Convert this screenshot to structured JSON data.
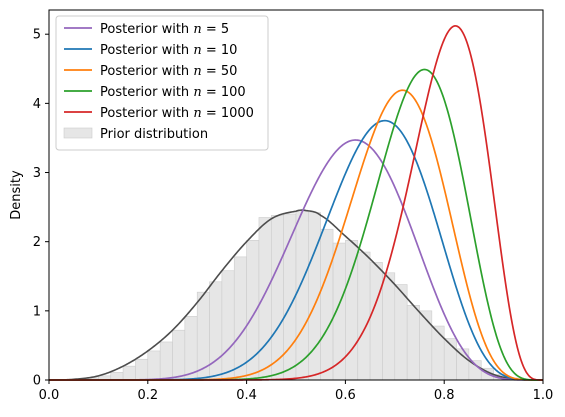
{
  "chart_data": {
    "type": "line",
    "title": "",
    "xlabel": "",
    "ylabel": "Density",
    "xlim": [
      0,
      1
    ],
    "ylim": [
      0,
      5.35
    ],
    "xticks": [
      "0.0",
      "0.2",
      "0.4",
      "0.6",
      "0.8",
      "1.0"
    ],
    "yticks": [
      "0",
      "1",
      "2",
      "3",
      "4",
      "5"
    ],
    "grid": false,
    "legend_position": "top-left",
    "series": [
      {
        "name": "Posterior with $n = 5$",
        "label_prefix": "Posterior with ",
        "label_var": "n",
        "label_op": " = ",
        "label_num": "5",
        "color": "#9467bd",
        "mean": 0.6063,
        "sd": 0.1148,
        "peak": 3.47
      },
      {
        "name": "Posterior with $n = 10$",
        "label_prefix": "Posterior with ",
        "label_var": "n",
        "label_op": " = ",
        "label_num": "10",
        "color": "#1f77b4",
        "mean": 0.6606,
        "sd": 0.1064,
        "peak": 3.75
      },
      {
        "name": "Posterior with $n = 50$",
        "label_prefix": "Posterior with ",
        "label_var": "n",
        "label_op": " = ",
        "label_num": "50",
        "color": "#ff7f0e",
        "mean": 0.6964,
        "sd": 0.0951,
        "peak": 4.19
      },
      {
        "name": "Posterior with $n = 100$",
        "label_prefix": "Posterior with ",
        "label_var": "n",
        "label_op": " = ",
        "label_num": "100",
        "color": "#2ca02c",
        "mean": 0.7379,
        "sd": 0.0889,
        "peak": 4.49
      },
      {
        "name": "Posterior with $n = 1000$",
        "label_prefix": "Posterior with ",
        "label_var": "n",
        "label_op": " = ",
        "label_num": "1000",
        "color": "#d62728",
        "mean": 0.7975,
        "sd": 0.0779,
        "peak": 5.12
      }
    ],
    "prior": {
      "name": "Prior distribution",
      "kde_color": "#4d4d4d",
      "hist_fill": "#e6e6e6",
      "hist_edge": "#cccccc",
      "bin_width": 0.025,
      "kde_x": [
        0.0,
        0.05,
        0.1,
        0.15,
        0.2,
        0.25,
        0.3,
        0.35,
        0.4,
        0.45,
        0.5,
        0.52,
        0.55,
        0.6,
        0.65,
        0.7,
        0.75,
        0.8,
        0.85,
        0.9,
        0.95,
        1.0
      ],
      "kde_y": [
        0.0,
        0.01,
        0.06,
        0.2,
        0.42,
        0.72,
        1.12,
        1.58,
        2.0,
        2.33,
        2.44,
        2.45,
        2.38,
        2.08,
        1.75,
        1.38,
        0.98,
        0.6,
        0.28,
        0.08,
        0.01,
        0.0
      ],
      "hist_bins": [
        {
          "x0": 0.0,
          "h": 0.0
        },
        {
          "x0": 0.025,
          "h": 0.0
        },
        {
          "x0": 0.05,
          "h": 0.01
        },
        {
          "x0": 0.075,
          "h": 0.03
        },
        {
          "x0": 0.1,
          "h": 0.06
        },
        {
          "x0": 0.125,
          "h": 0.11
        },
        {
          "x0": 0.15,
          "h": 0.2
        },
        {
          "x0": 0.175,
          "h": 0.3
        },
        {
          "x0": 0.2,
          "h": 0.42
        },
        {
          "x0": 0.225,
          "h": 0.55
        },
        {
          "x0": 0.25,
          "h": 0.72
        },
        {
          "x0": 0.275,
          "h": 0.92
        },
        {
          "x0": 0.3,
          "h": 1.27
        },
        {
          "x0": 0.325,
          "h": 1.42
        },
        {
          "x0": 0.35,
          "h": 1.58
        },
        {
          "x0": 0.375,
          "h": 1.78
        },
        {
          "x0": 0.4,
          "h": 2.02
        },
        {
          "x0": 0.425,
          "h": 2.35
        },
        {
          "x0": 0.45,
          "h": 2.38
        },
        {
          "x0": 0.475,
          "h": 2.4
        },
        {
          "x0": 0.5,
          "h": 2.45
        },
        {
          "x0": 0.525,
          "h": 2.42
        },
        {
          "x0": 0.55,
          "h": 2.18
        },
        {
          "x0": 0.575,
          "h": 1.98
        },
        {
          "x0": 0.6,
          "h": 2.02
        },
        {
          "x0": 0.625,
          "h": 1.85
        },
        {
          "x0": 0.65,
          "h": 1.7
        },
        {
          "x0": 0.675,
          "h": 1.55
        },
        {
          "x0": 0.7,
          "h": 1.38
        },
        {
          "x0": 0.725,
          "h": 1.08
        },
        {
          "x0": 0.75,
          "h": 1.0
        },
        {
          "x0": 0.775,
          "h": 0.78
        },
        {
          "x0": 0.8,
          "h": 0.6
        },
        {
          "x0": 0.825,
          "h": 0.45
        },
        {
          "x0": 0.85,
          "h": 0.28
        },
        {
          "x0": 0.875,
          "h": 0.17
        },
        {
          "x0": 0.9,
          "h": 0.08
        },
        {
          "x0": 0.925,
          "h": 0.03
        },
        {
          "x0": 0.95,
          "h": 0.01
        },
        {
          "x0": 0.975,
          "h": 0.0
        }
      ]
    }
  }
}
